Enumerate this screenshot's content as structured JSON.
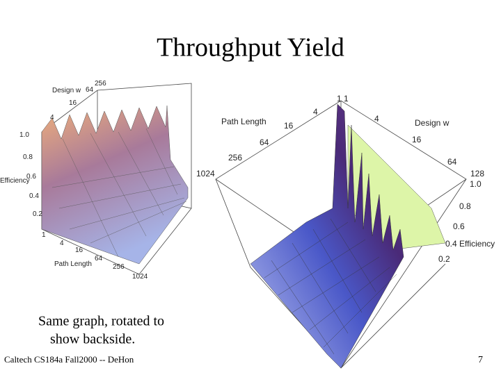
{
  "header": {
    "title": "Throughput Yield"
  },
  "left_plot": {
    "labels": [
      "Design w",
      "256",
      "64",
      "16",
      "4",
      "1.0",
      "0.8",
      "0.6",
      "Efficiency",
      "0.4",
      "0.2",
      "1",
      "4",
      "16",
      "64",
      "256",
      "1024",
      "Path Length"
    ]
  },
  "right_plot": {
    "labels": [
      "Path Length",
      "4",
      "16",
      "64",
      "256",
      "1024",
      "1",
      "1",
      "4",
      "Design w",
      "16",
      "64",
      "128",
      "1.0",
      "0.8",
      "0.6",
      "0.4 Efficiency",
      "0.2"
    ]
  },
  "caption": {
    "lines": [
      "Same graph, rotated to",
      "show backside."
    ]
  },
  "footer": {
    "text": "Caltech CS184a Fall2000 -- DeHon",
    "page": "7"
  }
}
